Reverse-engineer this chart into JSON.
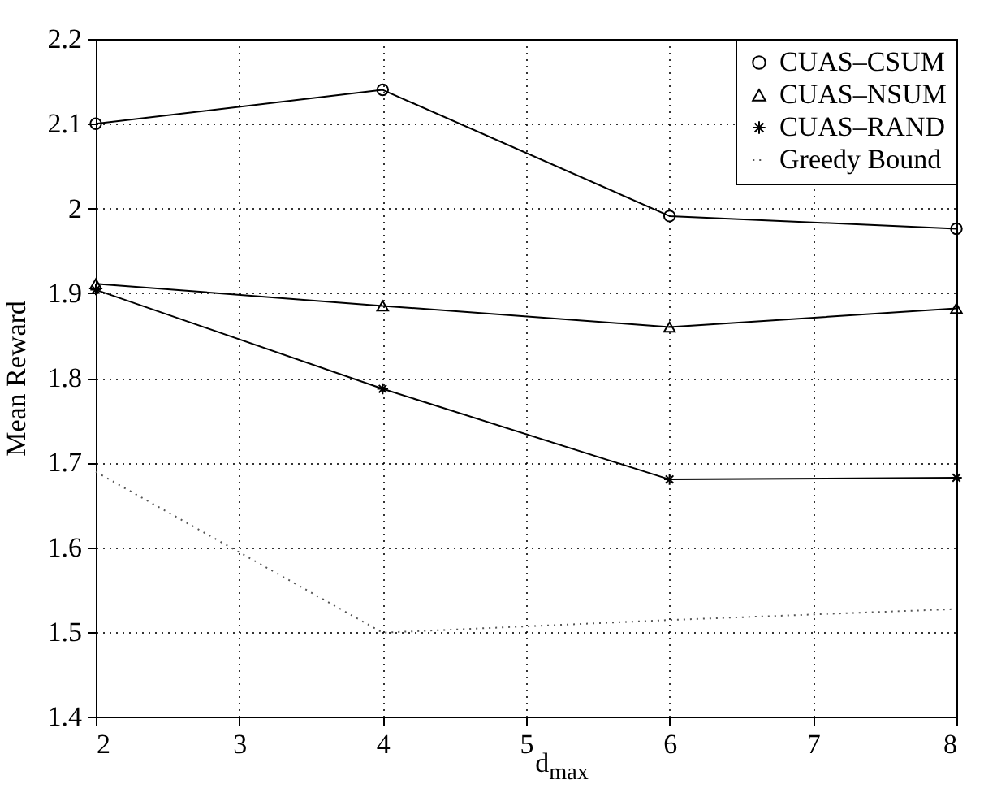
{
  "chart_data": {
    "type": "line",
    "xlabel": "d$_{max}$",
    "ylabel": "Mean Reward",
    "x": [
      2,
      4,
      6,
      8
    ],
    "series": [
      {
        "name": "CUAS–CSUM",
        "color": "#000000",
        "marker": "circle",
        "line_style": "solid",
        "values": [
          2.1,
          2.14,
          1.991,
          1.976
        ]
      },
      {
        "name": "CUAS–NSUM",
        "color": "#000000",
        "marker": "triangle",
        "line_style": "solid",
        "values": [
          1.911,
          1.885,
          1.86,
          1.882
        ]
      },
      {
        "name": "CUAS–RAND",
        "color": "#000000",
        "marker": "cross",
        "line_style": "solid",
        "values": [
          1.904,
          1.787,
          1.68,
          1.682
        ]
      },
      {
        "name": "Greedy Bound",
        "color": "#555555",
        "marker": "none",
        "line_style": "dotted",
        "values": [
          1.689,
          1.499,
          1.514,
          1.527
        ]
      }
    ],
    "xlim": [
      2,
      8
    ],
    "xticks": [
      2,
      3,
      4,
      5,
      6,
      7,
      8
    ],
    "ylim": [
      1.4,
      2.2
    ],
    "yticks": [
      1.4,
      1.5,
      1.6,
      1.7,
      1.8,
      1.9,
      2,
      2.1,
      2.2
    ],
    "grid": true,
    "legend": "top right"
  }
}
